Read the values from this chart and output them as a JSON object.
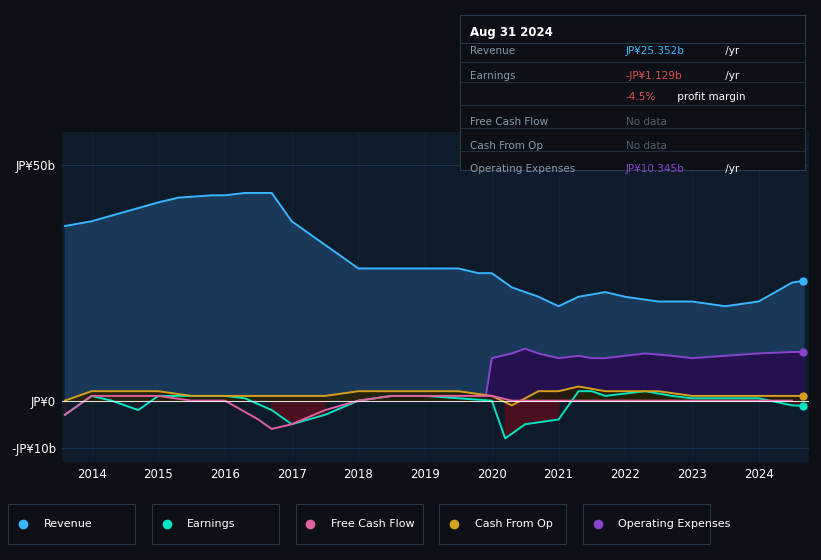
{
  "bg_color": "#0d1117",
  "plot_bg_color": "#0d1b2a",
  "grid_color": "#1e3a5f",
  "ytick_labels": [
    "-JP¥10b",
    "JP¥0",
    "JP¥50b"
  ],
  "xtick_labels": [
    "2014",
    "2015",
    "2016",
    "2017",
    "2018",
    "2019",
    "2020",
    "2021",
    "2022",
    "2023",
    "2024"
  ],
  "legend": [
    {
      "label": "Revenue",
      "color": "#38b6ff"
    },
    {
      "label": "Earnings",
      "color": "#00e5c0"
    },
    {
      "label": "Free Cash Flow",
      "color": "#e060a0"
    },
    {
      "label": "Cash From Op",
      "color": "#d4a020"
    },
    {
      "label": "Operating Expenses",
      "color": "#8844cc"
    }
  ],
  "revenue_x": [
    2013.6,
    2014.0,
    2014.5,
    2015.0,
    2015.3,
    2015.8,
    2016.0,
    2016.3,
    2016.7,
    2017.0,
    2017.5,
    2018.0,
    2018.5,
    2019.0,
    2019.5,
    2019.8,
    2020.0,
    2020.3,
    2020.7,
    2021.0,
    2021.3,
    2021.7,
    2022.0,
    2022.5,
    2023.0,
    2023.5,
    2024.0,
    2024.5,
    2024.67
  ],
  "revenue_y": [
    37,
    38,
    40,
    42,
    43,
    43.5,
    43.5,
    44,
    44,
    38,
    33,
    28,
    28,
    28,
    28,
    27,
    27,
    24,
    22,
    20,
    22,
    23,
    22,
    21,
    21,
    20,
    21,
    25,
    25.4
  ],
  "revenue_color": "#38b6ff",
  "revenue_fill": "#1a3858",
  "earnings_x": [
    2013.6,
    2014.0,
    2014.3,
    2014.7,
    2015.0,
    2015.5,
    2016.0,
    2016.3,
    2016.7,
    2017.0,
    2017.5,
    2018.0,
    2018.5,
    2019.0,
    2019.5,
    2020.0,
    2020.2,
    2020.5,
    2021.0,
    2021.3,
    2021.5,
    2021.7,
    2022.0,
    2022.3,
    2022.7,
    2023.0,
    2023.5,
    2024.0,
    2024.5,
    2024.67
  ],
  "earnings_y": [
    -3,
    1,
    0,
    -2,
    1,
    1,
    1,
    0.5,
    -2,
    -5,
    -3,
    0,
    1,
    1,
    0.5,
    0,
    -8,
    -5,
    -4,
    2,
    2,
    1,
    1.5,
    2,
    1,
    0.5,
    0.5,
    0.5,
    -1,
    -1.1
  ],
  "earnings_color": "#00e5c0",
  "earnings_fill_pos": "#0a2e22",
  "earnings_fill_neg": "#4a1020",
  "fcf_x": [
    2013.6,
    2014.0,
    2014.5,
    2015.0,
    2015.5,
    2016.0,
    2016.5,
    2016.7,
    2017.0,
    2017.5,
    2018.0,
    2018.5,
    2019.0,
    2019.5,
    2020.0,
    2020.3,
    2021.0,
    2021.5,
    2022.0,
    2022.5,
    2023.0,
    2023.5,
    2024.0,
    2024.5
  ],
  "fcf_y": [
    -3,
    1,
    1,
    1,
    0,
    0,
    -4,
    -6,
    -5,
    -2,
    0,
    1,
    1,
    1,
    1,
    0,
    0,
    0,
    0,
    0,
    0,
    0,
    0,
    0
  ],
  "fcf_color": "#e060a0",
  "cop_x": [
    2013.6,
    2014.0,
    2014.5,
    2015.0,
    2015.5,
    2016.0,
    2016.5,
    2017.0,
    2017.5,
    2018.0,
    2018.5,
    2019.0,
    2019.5,
    2020.0,
    2020.3,
    2020.7,
    2021.0,
    2021.3,
    2021.7,
    2022.0,
    2022.5,
    2023.0,
    2023.5,
    2024.0,
    2024.5,
    2024.67
  ],
  "cop_y": [
    0,
    2,
    2,
    2,
    1,
    1,
    1,
    1,
    1,
    2,
    2,
    2,
    2,
    1,
    -1,
    2,
    2,
    3,
    2,
    2,
    2,
    1,
    1,
    1,
    1,
    1
  ],
  "cop_color": "#d4a020",
  "cop_fill": "#2a1e00",
  "opex_x": [
    2019.9,
    2020.0,
    2020.3,
    2020.5,
    2020.7,
    2021.0,
    2021.3,
    2021.5,
    2021.7,
    2022.0,
    2022.3,
    2022.7,
    2023.0,
    2023.5,
    2024.0,
    2024.5,
    2024.67
  ],
  "opex_y": [
    0,
    9,
    10,
    11,
    10,
    9,
    9.5,
    9,
    9,
    9.5,
    10,
    9.5,
    9,
    9.5,
    10,
    10.3,
    10.345
  ],
  "opex_color": "#8844cc",
  "opex_fill": "#251050"
}
